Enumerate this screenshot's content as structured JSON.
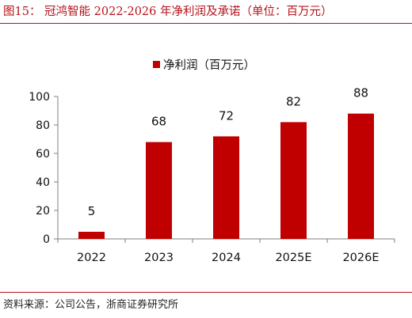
{
  "header": {
    "figure_title": "图15：  冠鸿智能 2022-2026 年净利润及承诺（单位：百万元）"
  },
  "footer": {
    "source": "资料来源：公司公告，浙商证券研究所"
  },
  "colors": {
    "accent": "#b5121b",
    "bar": "#c00000",
    "axis": "#7f7f7f"
  },
  "chart_data": {
    "type": "bar",
    "title": "",
    "xlabel": "",
    "ylabel": "",
    "categories": [
      "2022",
      "2023",
      "2024",
      "2025E",
      "2026E"
    ],
    "series": [
      {
        "name": "净利润（百万元）",
        "values": [
          5,
          68,
          72,
          82,
          88
        ]
      }
    ],
    "data_labels": [
      "5",
      "68",
      "72",
      "82",
      "88"
    ],
    "ylim": [
      0,
      100
    ],
    "yticks": [
      0,
      20,
      40,
      60,
      80,
      100
    ],
    "grid": false,
    "legend_position": "top-center"
  }
}
